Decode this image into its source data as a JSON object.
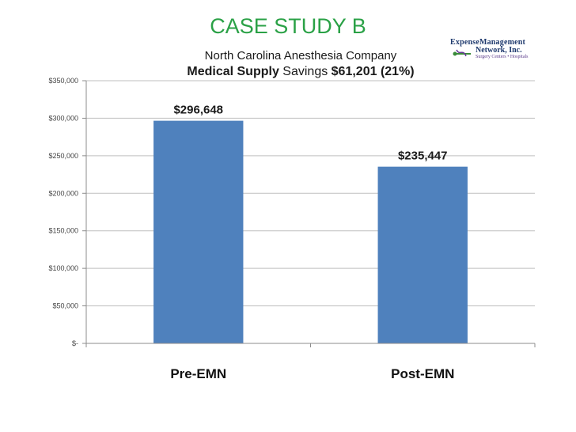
{
  "header": {
    "title": "CASE STUDY B",
    "subtitle": "North Carolina Anesthesia Company",
    "headline_bold": "Medical Supply",
    "headline_text": " Savings ",
    "headline_amount": "$61,201 (21%)"
  },
  "logo": {
    "line1": "ExpenseManagement",
    "line2": "Network, Inc.",
    "line3": "Surgery Centers • Hospitals",
    "icon": "caduceus-icon"
  },
  "chart_data": {
    "type": "bar",
    "categories": [
      "Pre-EMN",
      "Post-EMN"
    ],
    "values": [
      296648,
      235447
    ],
    "data_labels": [
      "$296,648",
      "$235,447"
    ],
    "ylim": [
      0,
      350000
    ],
    "yticks": [
      0,
      50000,
      100000,
      150000,
      200000,
      250000,
      300000,
      350000
    ],
    "ytick_labels": [
      "$-",
      "$50,000",
      "$100,000",
      "$150,000",
      "$200,000",
      "$250,000",
      "$300,000",
      "$350,000"
    ],
    "grid": true,
    "bar_color": "#4f81bd"
  }
}
